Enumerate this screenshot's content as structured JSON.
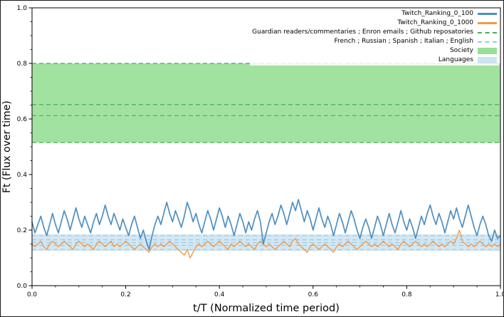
{
  "chart_data": {
    "type": "line",
    "title": "",
    "xlabel": "t/T (Normalized time period)",
    "ylabel": "Ft (Flux over time)",
    "xlim": [
      0.0,
      1.0
    ],
    "ylim": [
      0.0,
      1.0
    ],
    "grid": false,
    "legend_position": "upper right",
    "x_ticks": [
      0.0,
      0.2,
      0.4,
      0.6,
      0.8,
      1.0
    ],
    "x_tick_labels": [
      "0.0",
      "0.2",
      "0.4",
      "0.6",
      "0.8",
      "1.0"
    ],
    "y_ticks": [
      0.0,
      0.2,
      0.4,
      0.6,
      0.8,
      1.0
    ],
    "y_tick_labels": [
      "0.0",
      "0.2",
      "0.4",
      "0.6",
      "0.8",
      "1.0"
    ],
    "n_points": 161,
    "series": [
      {
        "name": "Twitch_Ranking_0_100",
        "color": "#4f8fc0",
        "values": [
          0.23,
          0.19,
          0.22,
          0.25,
          0.21,
          0.18,
          0.22,
          0.26,
          0.22,
          0.19,
          0.23,
          0.27,
          0.24,
          0.2,
          0.24,
          0.28,
          0.24,
          0.21,
          0.25,
          0.22,
          0.19,
          0.23,
          0.26,
          0.22,
          0.25,
          0.29,
          0.25,
          0.22,
          0.26,
          0.23,
          0.2,
          0.24,
          0.21,
          0.18,
          0.22,
          0.25,
          0.21,
          0.17,
          0.2,
          0.16,
          0.13,
          0.18,
          0.22,
          0.25,
          0.22,
          0.26,
          0.3,
          0.26,
          0.23,
          0.27,
          0.24,
          0.21,
          0.25,
          0.3,
          0.27,
          0.23,
          0.26,
          0.22,
          0.19,
          0.23,
          0.27,
          0.24,
          0.2,
          0.24,
          0.28,
          0.25,
          0.21,
          0.25,
          0.22,
          0.18,
          0.22,
          0.26,
          0.23,
          0.19,
          0.23,
          0.2,
          0.24,
          0.27,
          0.23,
          0.15,
          0.19,
          0.23,
          0.26,
          0.22,
          0.25,
          0.29,
          0.26,
          0.22,
          0.26,
          0.3,
          0.27,
          0.31,
          0.27,
          0.23,
          0.27,
          0.24,
          0.2,
          0.24,
          0.28,
          0.24,
          0.21,
          0.25,
          0.22,
          0.18,
          0.22,
          0.26,
          0.23,
          0.19,
          0.23,
          0.27,
          0.24,
          0.2,
          0.17,
          0.21,
          0.24,
          0.21,
          0.17,
          0.21,
          0.25,
          0.22,
          0.18,
          0.22,
          0.26,
          0.22,
          0.19,
          0.23,
          0.27,
          0.23,
          0.2,
          0.24,
          0.21,
          0.17,
          0.21,
          0.25,
          0.22,
          0.26,
          0.29,
          0.25,
          0.22,
          0.26,
          0.23,
          0.19,
          0.23,
          0.27,
          0.24,
          0.28,
          0.24,
          0.21,
          0.25,
          0.29,
          0.25,
          0.21,
          0.18,
          0.22,
          0.25,
          0.22,
          0.18,
          0.16,
          0.2,
          0.17,
          0.18
        ]
      },
      {
        "name": "Twitch_Ranking_0_1000",
        "color": "#f59942",
        "values": [
          0.15,
          0.14,
          0.15,
          0.16,
          0.14,
          0.13,
          0.15,
          0.16,
          0.15,
          0.14,
          0.15,
          0.16,
          0.15,
          0.14,
          0.13,
          0.15,
          0.16,
          0.15,
          0.14,
          0.15,
          0.14,
          0.13,
          0.15,
          0.16,
          0.15,
          0.14,
          0.15,
          0.16,
          0.14,
          0.15,
          0.14,
          0.15,
          0.16,
          0.15,
          0.14,
          0.13,
          0.14,
          0.15,
          0.14,
          0.13,
          0.12,
          0.14,
          0.15,
          0.14,
          0.15,
          0.14,
          0.15,
          0.16,
          0.15,
          0.14,
          0.13,
          0.12,
          0.11,
          0.13,
          0.1,
          0.12,
          0.14,
          0.15,
          0.14,
          0.15,
          0.16,
          0.15,
          0.14,
          0.15,
          0.16,
          0.15,
          0.14,
          0.13,
          0.15,
          0.14,
          0.15,
          0.16,
          0.15,
          0.14,
          0.15,
          0.14,
          0.13,
          0.15,
          0.16,
          0.15,
          0.14,
          0.15,
          0.14,
          0.13,
          0.14,
          0.15,
          0.16,
          0.15,
          0.14,
          0.16,
          0.17,
          0.15,
          0.14,
          0.13,
          0.12,
          0.14,
          0.15,
          0.14,
          0.13,
          0.14,
          0.15,
          0.14,
          0.13,
          0.12,
          0.14,
          0.15,
          0.14,
          0.15,
          0.16,
          0.15,
          0.14,
          0.13,
          0.14,
          0.15,
          0.16,
          0.15,
          0.14,
          0.15,
          0.14,
          0.15,
          0.16,
          0.15,
          0.14,
          0.15,
          0.14,
          0.13,
          0.15,
          0.16,
          0.15,
          0.14,
          0.15,
          0.16,
          0.15,
          0.14,
          0.15,
          0.14,
          0.15,
          0.16,
          0.15,
          0.14,
          0.15,
          0.14,
          0.15,
          0.16,
          0.15,
          0.17,
          0.2,
          0.16,
          0.15,
          0.14,
          0.15,
          0.14,
          0.15,
          0.16,
          0.15,
          0.14,
          0.15,
          0.14,
          0.15,
          0.14,
          0.15
        ]
      }
    ],
    "bands": [
      {
        "name": "Society",
        "color": "#97df96",
        "opacity": 0.9,
        "from": 0.515,
        "to": 0.8
      },
      {
        "name": "Languages",
        "color": "#cde4f3",
        "opacity": 0.9,
        "from": 0.125,
        "to": 0.185
      }
    ],
    "hlines": [
      {
        "group": "Society",
        "color": "#4bae4f",
        "dash": "6,4",
        "values": [
          0.8,
          0.652,
          0.612,
          0.515
        ]
      },
      {
        "group": "Languages",
        "color": "#9ecae1",
        "dash": "6,4",
        "values": [
          0.18,
          0.165,
          0.155,
          0.145,
          0.13
        ]
      }
    ],
    "legend": [
      {
        "label": "Twitch_Ranking_0_100",
        "swatch": "line",
        "color": "#4f8fc0"
      },
      {
        "label": "Twitch_Ranking_0_1000",
        "swatch": "line",
        "color": "#f59942"
      },
      {
        "label": "Guardian readers/commentaries ;  Enron emails ; Github reposatories",
        "swatch": "dashed-line",
        "color": "#4bae4f"
      },
      {
        "label": "French ; Russian ; Spanish ; Italian ; English",
        "swatch": "dashed-line",
        "color": "#9ecae1"
      },
      {
        "label": "Society",
        "swatch": "patch",
        "color": "#97df96"
      },
      {
        "label": "Languages",
        "swatch": "patch",
        "color": "#cde4f3"
      }
    ]
  }
}
